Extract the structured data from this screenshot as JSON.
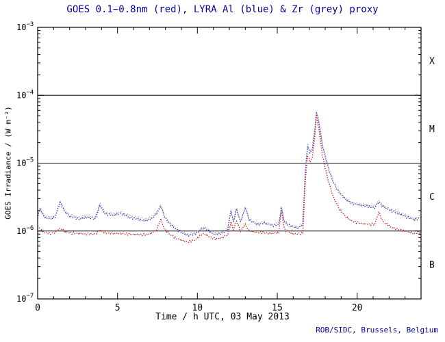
{
  "credit": "ROB/SIDC, Brussels, Belgium",
  "chart_data": {
    "type": "line",
    "title": "GOES 0.1−0.8nm (red), LYRA Al (blue) & Zr (grey) proxy",
    "xlabel": "Time / h UTC, 03 May 2013",
    "ylabel": "GOES Irradiance / (W m⁻²)",
    "x_range": [
      0,
      24
    ],
    "y_range": [
      1e-07,
      0.001
    ],
    "y_scale": "log",
    "x_ticks": [
      0,
      5,
      10,
      15,
      20
    ],
    "x_minor_step": 1,
    "hlines": [
      0.0001,
      1e-05,
      1e-06
    ],
    "flare_classes": [
      {
        "label": "X",
        "between": [
          0.0001,
          0.001
        ]
      },
      {
        "label": "M",
        "between": [
          1e-05,
          0.0001
        ]
      },
      {
        "label": "C",
        "between": [
          1e-06,
          1e-05
        ]
      },
      {
        "label": "B",
        "between": [
          1e-07,
          1e-06
        ]
      }
    ],
    "x": [
      0,
      0.15,
      0.4,
      0.8,
      1.1,
      1.4,
      1.7,
      2.1,
      2.6,
      3.1,
      3.6,
      3.9,
      4.2,
      4.7,
      5.2,
      5.7,
      6.2,
      6.7,
      7.1,
      7.45,
      7.7,
      7.95,
      8.3,
      8.7,
      9.1,
      9.4,
      9.8,
      10.1,
      10.35,
      10.7,
      11.1,
      11.5,
      11.9,
      12.1,
      12.25,
      12.45,
      12.7,
      13.0,
      13.25,
      13.7,
      14.2,
      14.7,
      15.1,
      15.25,
      15.45,
      15.9,
      16.3,
      16.6,
      16.75,
      16.9,
      17.05,
      17.2,
      17.35,
      17.45,
      17.6,
      17.85,
      18.15,
      18.5,
      18.9,
      19.3,
      19.7,
      20.2,
      20.7,
      21.1,
      21.35,
      21.6,
      22.1,
      22.6,
      23.1,
      23.6,
      24
    ],
    "series": [
      {
        "id": "zr",
        "name": "LYRA Zr proxy",
        "color": "#a8a8a8",
        "values": [
          1.7e-06,
          2.2e-06,
          1.7e-06,
          1.6e-06,
          1.7e-06,
          2.8e-06,
          2e-06,
          1.7e-06,
          1.6e-06,
          1.7e-06,
          1.6e-06,
          2.6e-06,
          1.9e-06,
          1.8e-06,
          1.9e-06,
          1.7e-06,
          1.6e-06,
          1.5e-06,
          1.6e-06,
          1.9e-06,
          2.45e-06,
          1.7e-06,
          1.3e-06,
          1.1e-06,
          9.6e-07,
          9e-07,
          9.4e-07,
          1.02e-06,
          1.15e-06,
          1.05e-06,
          9.2e-07,
          9.6e-07,
          1.1e-06,
          2.1e-06,
          1.4e-06,
          2.2e-06,
          1.4e-06,
          2.3e-06,
          1.5e-06,
          1.3e-06,
          1.35e-06,
          1.25e-06,
          1.3e-06,
          2.3e-06,
          1.4e-06,
          1.2e-06,
          1.15e-06,
          1.3e-06,
          7.5e-06,
          1.9e-05,
          1.5e-05,
          1.7e-05,
          3.2e-05,
          5.8e-05,
          4.2e-05,
          1.8e-05,
          9.5e-06,
          5.5e-06,
          3.8e-06,
          3e-06,
          2.6e-06,
          2.5e-06,
          2.4e-06,
          2.3e-06,
          2.8e-06,
          2.4e-06,
          2.1e-06,
          1.9e-06,
          1.7e-06,
          1.5e-06,
          1.7e-06
        ]
      },
      {
        "id": "al",
        "name": "LYRA Al",
        "color": "#3030cc",
        "values": [
          1.6e-06,
          2.1e-06,
          1.6e-06,
          1.5e-06,
          1.6e-06,
          2.6e-06,
          1.9e-06,
          1.6e-06,
          1.5e-06,
          1.6e-06,
          1.5e-06,
          2.4e-06,
          1.8e-06,
          1.7e-06,
          1.8e-06,
          1.6e-06,
          1.5e-06,
          1.4e-06,
          1.5e-06,
          1.8e-06,
          2.3e-06,
          1.6e-06,
          1.25e-06,
          1.05e-06,
          9.2e-07,
          8.6e-07,
          9e-07,
          9.8e-07,
          1.1e-06,
          1e-06,
          8.8e-07,
          9.2e-07,
          1.05e-06,
          2e-06,
          1.35e-06,
          2.1e-06,
          1.35e-06,
          2.2e-06,
          1.45e-06,
          1.25e-06,
          1.3e-06,
          1.2e-06,
          1.25e-06,
          2.2e-06,
          1.35e-06,
          1.15e-06,
          1.1e-06,
          1.25e-06,
          7e-06,
          1.8e-05,
          1.4e-05,
          1.6e-05,
          3e-05,
          5.6e-05,
          4e-05,
          1.7e-05,
          9e-06,
          5.2e-06,
          3.6e-06,
          2.9e-06,
          2.5e-06,
          2.4e-06,
          2.3e-06,
          2.2e-06,
          2.7e-06,
          2.3e-06,
          2e-06,
          1.8e-06,
          1.6e-06,
          1.45e-06,
          1.6e-06
        ]
      },
      {
        "id": "goes",
        "name": "GOES 0.1-0.8nm",
        "color": "#d01818",
        "values": [
          1.2e-06,
          1.05e-06,
          9.5e-07,
          9.2e-07,
          9.5e-07,
          1.1e-06,
          9.8e-07,
          9.4e-07,
          9.2e-07,
          9e-07,
          9e-07,
          1.05e-06,
          9.4e-07,
          9.2e-07,
          9.2e-07,
          9e-07,
          8.9e-07,
          8.8e-07,
          9.2e-07,
          1.05e-06,
          1.5e-06,
          1.05e-06,
          8.8e-07,
          7.8e-07,
          7.2e-07,
          6.9e-07,
          7.3e-07,
          8.2e-07,
          9.2e-07,
          8.4e-07,
          7.6e-07,
          7.9e-07,
          8.8e-07,
          1.35e-06,
          1.05e-06,
          1.4e-06,
          1e-06,
          1.25e-06,
          1e-06,
          9.6e-07,
          9.4e-07,
          9.2e-07,
          9.5e-07,
          2e-06,
          1.05e-06,
          9.2e-07,
          9e-07,
          9.5e-07,
          5e-06,
          1.3e-05,
          1.05e-05,
          1.2e-05,
          2.5e-05,
          5e-05,
          3.2e-05,
          1.2e-05,
          6e-06,
          3.2e-06,
          2.1e-06,
          1.6e-06,
          1.4e-06,
          1.3e-06,
          1.25e-06,
          1.25e-06,
          1.9e-06,
          1.4e-06,
          1.15e-06,
          1.05e-06,
          9.8e-07,
          9.2e-07,
          9.8e-07
        ]
      }
    ]
  }
}
